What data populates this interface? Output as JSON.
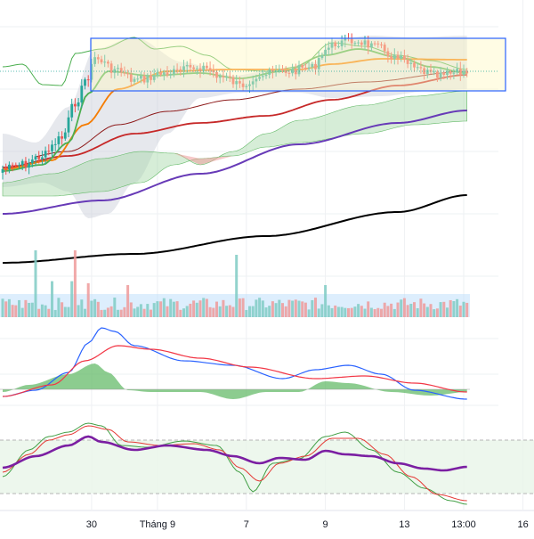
{
  "x_axis": {
    "labels": [
      {
        "text": "30",
        "idx": 27
      },
      {
        "text": "Tháng 9",
        "idx": 47
      },
      {
        "text": "7",
        "idx": 74
      },
      {
        "text": "9",
        "idx": 98
      },
      {
        "text": "13",
        "idx": 122
      },
      {
        "text": "13:00",
        "idx": 140
      },
      {
        "text": "16",
        "idx": 158
      }
    ]
  },
  "colors": {
    "up": "#26a69a",
    "down": "#ef5350",
    "grid": "#eef0f3",
    "ema_fast": "#4caf50",
    "ema_mid": "#f57c00",
    "ema_red": "#c62828",
    "ema_dark_red": "#8e1b1b",
    "sma_purple": "#673ab7",
    "sma_black": "#000000",
    "macd": "#2962ff",
    "signal": "#f23645",
    "stoch_k": "#43a047",
    "stoch_d": "#e53935",
    "rsi": "#7b1fa2",
    "selection_box": "#2962ff"
  },
  "chart_data": [
    {
      "type": "candlestick",
      "pane": "price",
      "x_count": 142,
      "candles_from_index": 0,
      "candles_to_index": 141,
      "series": [
        {
          "kind": "line",
          "color_key": "ema_fast"
        },
        {
          "kind": "line",
          "color_key": "ema_mid"
        },
        {
          "kind": "line",
          "color_key": "ema_red"
        },
        {
          "kind": "line",
          "color_key": "ema_dark_red"
        },
        {
          "kind": "line",
          "color_key": "sma_purple"
        },
        {
          "kind": "line",
          "color_key": "sma_black"
        },
        {
          "kind": "bollinger_bands",
          "fill": "#c7ccd8"
        },
        {
          "kind": "ichimoku_cloud",
          "fill_up": "#a5d6a7",
          "fill_down": "#ef9a9a"
        }
      ],
      "annotation": {
        "kind": "rectangle",
        "color_key": "selection_box"
      },
      "grid": true
    },
    {
      "type": "bar",
      "pane": "volume",
      "series": [
        {
          "kind": "bar",
          "up_color": "#80cbc4",
          "down_color": "#ef9a9a"
        }
      ],
      "grid": true
    },
    {
      "type": "line",
      "pane": "macd",
      "series": [
        {
          "kind": "line",
          "color_key": "macd"
        },
        {
          "kind": "line",
          "color_key": "signal"
        },
        {
          "kind": "histogram-area",
          "color": "#66bb6a"
        }
      ],
      "grid": true
    },
    {
      "type": "line",
      "pane": "stochastic",
      "series": [
        {
          "kind": "line",
          "color_key": "stoch_k"
        },
        {
          "kind": "line",
          "color_key": "stoch_d"
        },
        {
          "kind": "line",
          "color_key": "rsi"
        }
      ],
      "band": {
        "upper": 80,
        "lower": 20
      },
      "grid": true
    }
  ]
}
